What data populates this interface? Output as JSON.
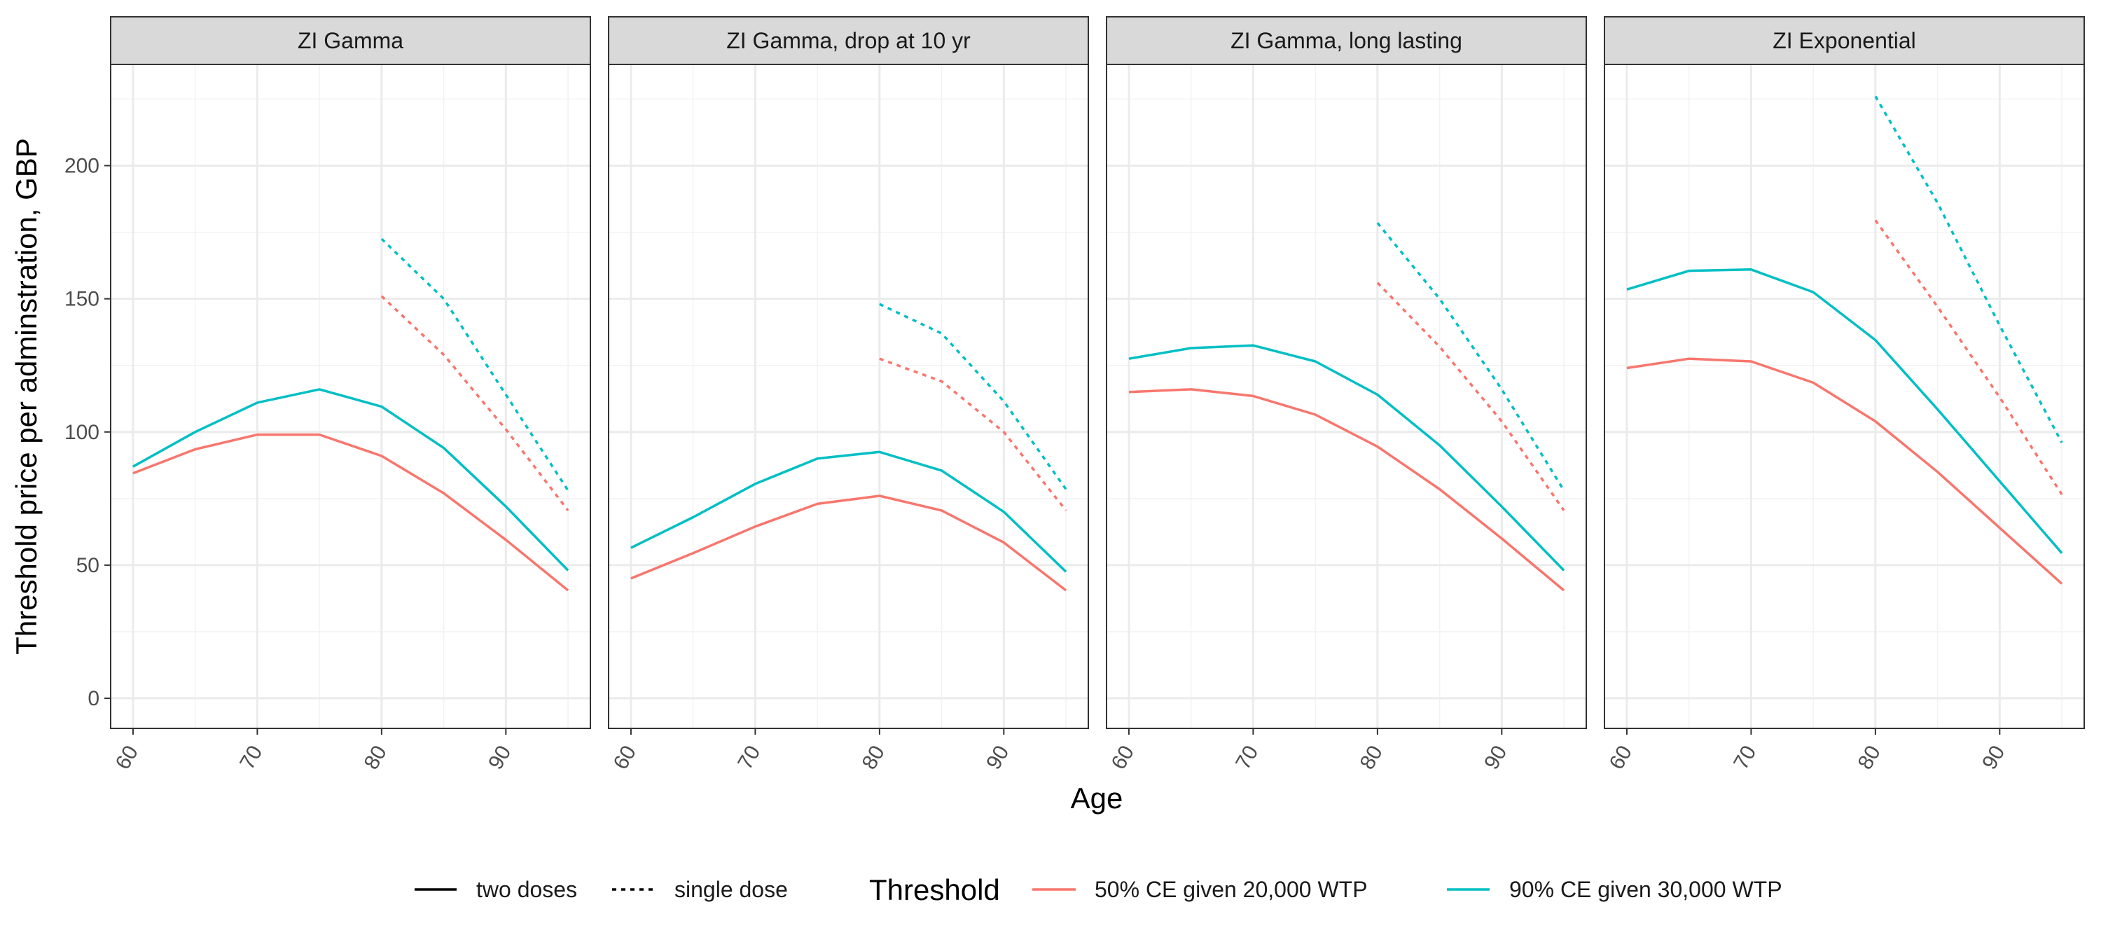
{
  "chart_data": {
    "type": "line",
    "ylabel": "Threshold price per adminstration, GBP",
    "xlabel": "Age",
    "xlim": [
      58.2,
      96.8
    ],
    "ylim": [
      -11.3,
      238
    ],
    "x_ticks": [
      60,
      70,
      80,
      90
    ],
    "y_ticks": [
      0,
      50,
      100,
      150,
      200
    ],
    "grid": true,
    "legend_position": "bottom",
    "linetype_legend": [
      {
        "label": "two doses",
        "dash": "solid"
      },
      {
        "label": "single dose",
        "dash": "dotted"
      }
    ],
    "color_legend": {
      "title": "Threshold",
      "entries": [
        {
          "label": "50% CE given 20,000 WTP",
          "color": "#F8766D"
        },
        {
          "label": "90% CE given 30,000 WTP",
          "color": "#00BFC4"
        }
      ]
    },
    "panels": [
      {
        "title": "ZI Gamma",
        "series": [
          {
            "threshold": 0,
            "dose": "two doses",
            "x": [
              60,
              65,
              70,
              75,
              80,
              85,
              90,
              95
            ],
            "y": [
              84.5,
              93.5,
              99,
              99,
              91,
              77,
              59.5,
              40.5
            ]
          },
          {
            "threshold": 1,
            "dose": "two doses",
            "x": [
              60,
              65,
              70,
              75,
              80,
              85,
              90,
              95
            ],
            "y": [
              87,
              100,
              111,
              116,
              109.5,
              94,
              72,
              48
            ]
          },
          {
            "threshold": 0,
            "dose": "single dose",
            "x": [
              80,
              85,
              90,
              95
            ],
            "y": [
              151,
              129,
              101,
              70.5
            ]
          },
          {
            "threshold": 1,
            "dose": "single dose",
            "x": [
              80,
              85,
              90,
              95
            ],
            "y": [
              172.5,
              150,
              114,
              78
            ]
          }
        ]
      },
      {
        "title": "ZI Gamma, drop at 10 yr",
        "series": [
          {
            "threshold": 0,
            "dose": "two doses",
            "x": [
              60,
              65,
              70,
              75,
              80,
              85,
              90,
              95
            ],
            "y": [
              45,
              54.5,
              64.5,
              73,
              76,
              70.5,
              58.5,
              40.5
            ]
          },
          {
            "threshold": 1,
            "dose": "two doses",
            "x": [
              60,
              65,
              70,
              75,
              80,
              85,
              90,
              95
            ],
            "y": [
              56.5,
              68,
              80.5,
              90,
              92.5,
              85.5,
              70,
              47.5
            ]
          },
          {
            "threshold": 0,
            "dose": "single dose",
            "x": [
              80,
              85,
              90,
              95
            ],
            "y": [
              127.5,
              119,
              100,
              70.5
            ]
          },
          {
            "threshold": 1,
            "dose": "single dose",
            "x": [
              80,
              85,
              90,
              95
            ],
            "y": [
              148,
              137,
              111.5,
              78.5
            ]
          }
        ]
      },
      {
        "title": "ZI Gamma, long lasting",
        "series": [
          {
            "threshold": 0,
            "dose": "two doses",
            "x": [
              60,
              65,
              70,
              75,
              80,
              85,
              90,
              95
            ],
            "y": [
              115,
              116,
              113.5,
              106.5,
              94.5,
              78.5,
              60,
              40.5
            ]
          },
          {
            "threshold": 1,
            "dose": "two doses",
            "x": [
              60,
              65,
              70,
              75,
              80,
              85,
              90,
              95
            ],
            "y": [
              127.5,
              131.5,
              132.5,
              126.5,
              114,
              95,
              72,
              48
            ]
          },
          {
            "threshold": 0,
            "dose": "single dose",
            "x": [
              80,
              85,
              90,
              95
            ],
            "y": [
              156,
              132,
              104,
              70.5
            ]
          },
          {
            "threshold": 1,
            "dose": "single dose",
            "x": [
              80,
              85,
              90,
              95
            ],
            "y": [
              178.5,
              150,
              116,
              78
            ]
          }
        ]
      },
      {
        "title": "ZI Exponential",
        "series": [
          {
            "threshold": 0,
            "dose": "two doses",
            "x": [
              60,
              65,
              70,
              75,
              80,
              85,
              90,
              95
            ],
            "y": [
              124,
              127.5,
              126.5,
              118.5,
              104,
              85,
              64,
              43
            ]
          },
          {
            "threshold": 1,
            "dose": "two doses",
            "x": [
              60,
              65,
              70,
              75,
              80,
              85,
              90,
              95
            ],
            "y": [
              153.5,
              160.5,
              161,
              152.5,
              134.5,
              108.5,
              81.5,
              54.5
            ]
          },
          {
            "threshold": 0,
            "dose": "single dose",
            "x": [
              80,
              85,
              90,
              95
            ],
            "y": [
              179.5,
              147,
              113,
              76.5
            ]
          },
          {
            "threshold": 1,
            "dose": "single dose",
            "x": [
              80,
              85,
              90,
              95
            ],
            "y": [
              226,
              186,
              140,
              96
            ]
          }
        ]
      }
    ]
  }
}
